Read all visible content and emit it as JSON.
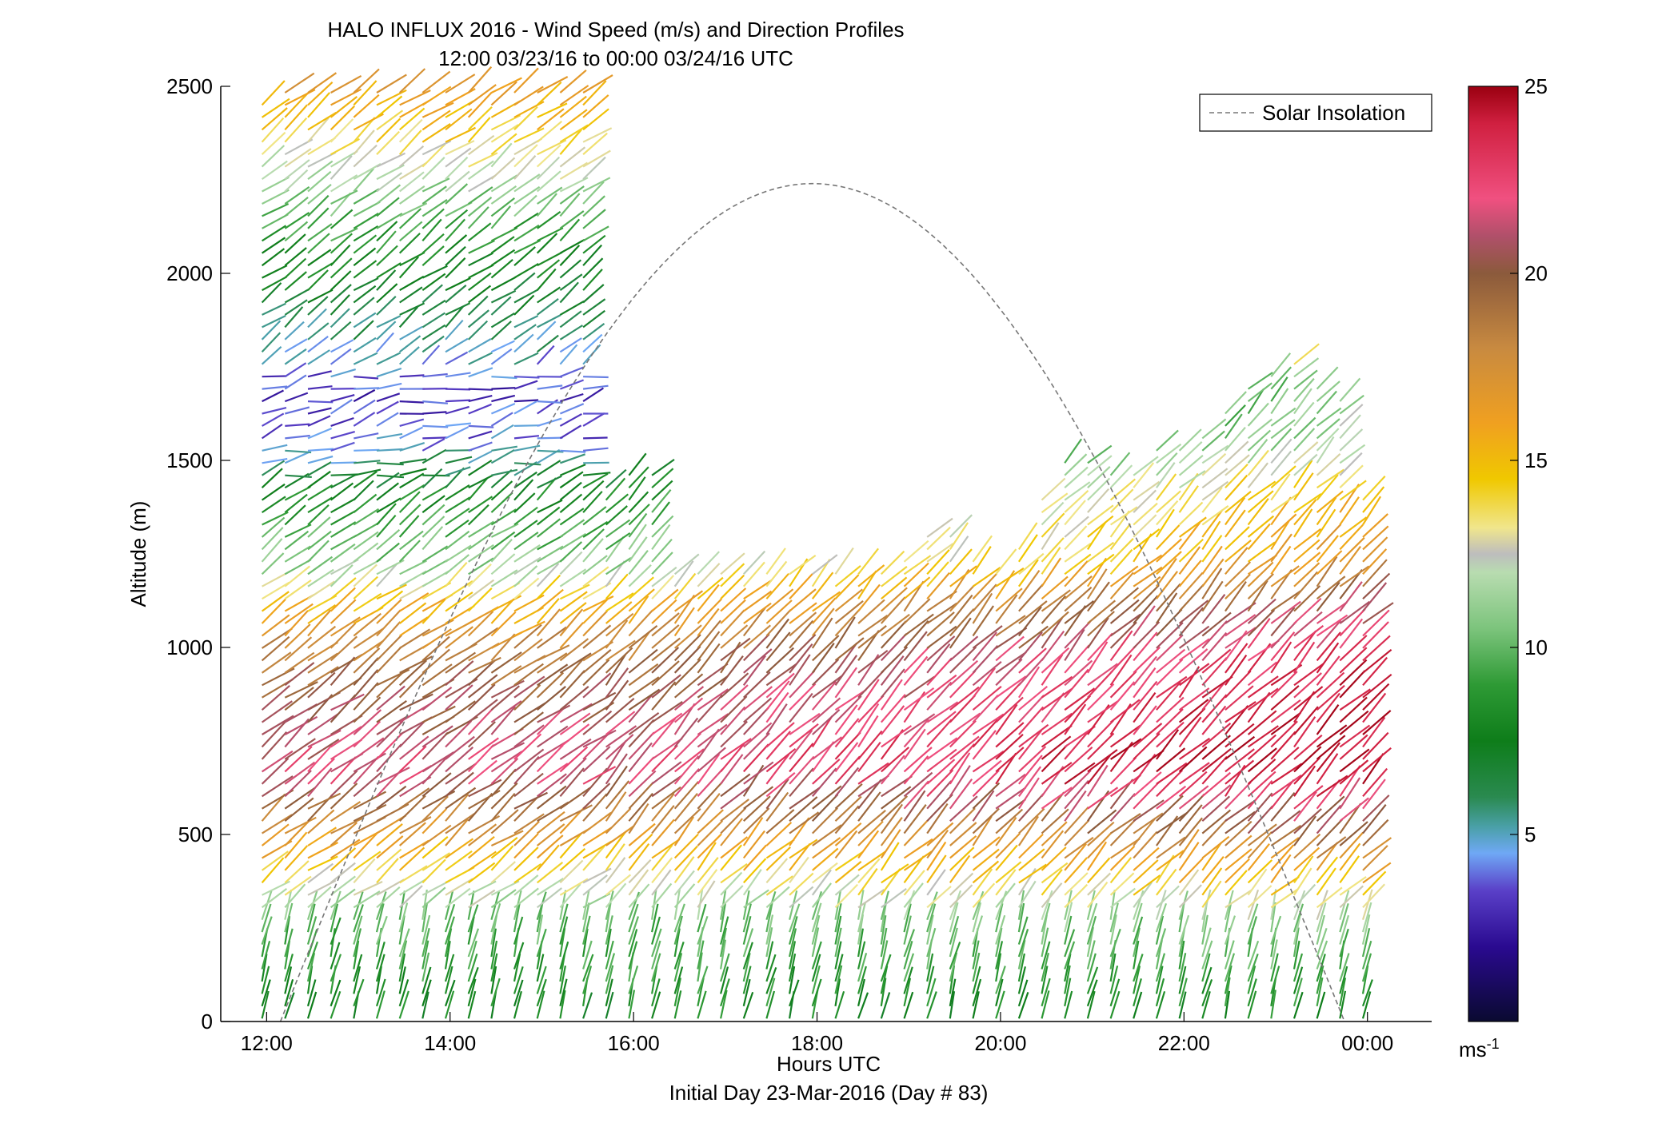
{
  "title": {
    "line1": "HALO INFLUX 2016 - Wind Speed (m/s) and Direction Profiles",
    "line2": "12:00 03/23/16 to 00:00 03/24/16  UTC"
  },
  "chart_data": {
    "type": "wind-barb-profile",
    "xlabel": "Hours UTC",
    "xlabel2": "Initial Day 23-Mar-2016 (Day # 83)",
    "ylabel": "Altitude (m)",
    "xlim": [
      11.5,
      24.7
    ],
    "ylim": [
      0,
      2500
    ],
    "x_ticks": [
      {
        "value": 12,
        "label": "12:00"
      },
      {
        "value": 14,
        "label": "14:00"
      },
      {
        "value": 16,
        "label": "16:00"
      },
      {
        "value": 18,
        "label": "18:00"
      },
      {
        "value": 20,
        "label": "20:00"
      },
      {
        "value": 22,
        "label": "22:00"
      },
      {
        "value": 24,
        "label": "00:00"
      }
    ],
    "y_ticks": [
      0,
      500,
      1000,
      1500,
      2000,
      2500
    ],
    "grid": false,
    "legend": {
      "position": "top-right",
      "entries": [
        "Solar Insolation"
      ]
    },
    "colorbar": {
      "min": 0,
      "max": 25,
      "ticks": [
        5,
        10,
        15,
        20,
        25
      ],
      "unit": "ms-1",
      "stops": [
        [
          0,
          "#0a0a30"
        ],
        [
          2,
          "#2a0a90"
        ],
        [
          3.5,
          "#5a40c8"
        ],
        [
          4.5,
          "#6fa8f5"
        ],
        [
          5.2,
          "#4aa0a8"
        ],
        [
          6,
          "#2a8a50"
        ],
        [
          7.5,
          "#0e7d1a"
        ],
        [
          9,
          "#2e9a35"
        ],
        [
          10.5,
          "#7cc47c"
        ],
        [
          12,
          "#b8dcb0"
        ],
        [
          12.5,
          "#bdbdbd"
        ],
        [
          13.2,
          "#f0e68c"
        ],
        [
          14.5,
          "#f0c800"
        ],
        [
          16,
          "#f0a020"
        ],
        [
          18,
          "#c88a40"
        ],
        [
          20,
          "#8b5a3c"
        ],
        [
          21,
          "#b0506a"
        ],
        [
          22,
          "#f05080"
        ],
        [
          24,
          "#d02040"
        ],
        [
          25,
          "#9a0010"
        ]
      ]
    },
    "profiles": {
      "hours": [
        11.95,
        12.2,
        12.45,
        12.7,
        12.95,
        13.2,
        13.45,
        13.7,
        13.95,
        14.2,
        14.45,
        14.7,
        14.95,
        15.2,
        15.45,
        15.7,
        15.95,
        16.2,
        16.45,
        16.7,
        16.95,
        17.2,
        17.45,
        17.7,
        17.95,
        18.2,
        18.45,
        18.7,
        18.95,
        19.2,
        19.45,
        19.7,
        19.95,
        20.2,
        20.45,
        20.7,
        20.95,
        21.2,
        21.45,
        21.7,
        21.95,
        22.2,
        22.45,
        22.7,
        22.95,
        23.2,
        23.45,
        23.7,
        23.95
      ],
      "tops_m": [
        2470,
        2490,
        2490,
        2490,
        2490,
        2490,
        2490,
        2490,
        2490,
        2490,
        2490,
        2490,
        2490,
        2490,
        2490,
        1450,
        1460,
        1480,
        1210,
        1210,
        1210,
        1210,
        1210,
        1210,
        1210,
        1210,
        1210,
        1210,
        1250,
        1320,
        1310,
        1250,
        1200,
        1290,
        1400,
        1500,
        1510,
        1460,
        1480,
        1540,
        1530,
        1560,
        1650,
        1700,
        1730,
        1760,
        1700,
        1660,
        1420
      ],
      "bin_spacing_m": 33,
      "speed_m_s_by_altitude": [
        {
          "z": 0,
          "v": 8
        },
        {
          "z": 250,
          "v": 10
        },
        {
          "z": 450,
          "v": 16
        },
        {
          "z": 650,
          "v": 22
        },
        {
          "z": 950,
          "v": 19
        },
        {
          "z": 1100,
          "v": 15
        },
        {
          "z": 1200,
          "v": 11
        },
        {
          "z": 1400,
          "v": 8
        },
        {
          "z": 1550,
          "v": 4
        },
        {
          "z": 1680,
          "v": 3
        },
        {
          "z": 1800,
          "v": 5.5
        },
        {
          "z": 2100,
          "v": 9
        },
        {
          "z": 2300,
          "v": 13
        },
        {
          "z": 2500,
          "v": 17
        }
      ]
    },
    "solar_insolation": {
      "name": "Solar Insolation",
      "style": "dashed",
      "color": "#777777",
      "start_hour": 12.15,
      "peak_hour": 17.95,
      "end_hour": 23.75,
      "peak_m": 2240
    }
  }
}
